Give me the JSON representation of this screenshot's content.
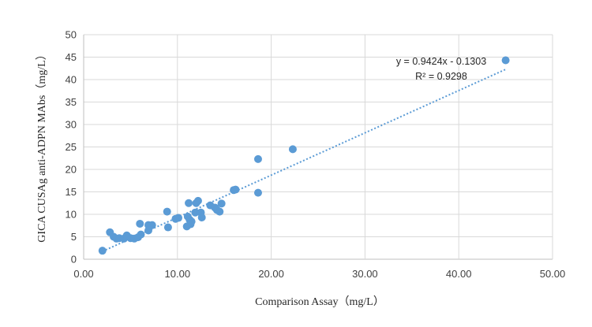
{
  "chart_data": {
    "type": "scatter",
    "xlabel": "Comparison Assay（mg/L）",
    "ylabel": "GICA CUSAg anti-ADPN MAbs（mg/L）",
    "xlim": [
      0,
      50
    ],
    "ylim": [
      0,
      50
    ],
    "x_ticks": [
      "0.00",
      "10.00",
      "20.00",
      "30.00",
      "40.00",
      "50.00"
    ],
    "y_ticks": [
      "0",
      "5",
      "10",
      "15",
      "20",
      "25",
      "30",
      "35",
      "40",
      "45",
      "50"
    ],
    "grid": true,
    "marker_color": "#5b9bd5",
    "trendline": {
      "slope": 0.9424,
      "intercept": -0.1303,
      "x_range": [
        2.0,
        45.0
      ],
      "style": "dotted",
      "color": "#5b9bd5",
      "equation": "y = 0.9424x - 0.1303",
      "r_squared": "R² = 0.9298"
    },
    "points": [
      [
        2.0,
        1.9
      ],
      [
        2.8,
        6.0
      ],
      [
        3.2,
        5.0
      ],
      [
        3.5,
        4.6
      ],
      [
        3.8,
        4.7
      ],
      [
        4.3,
        4.6
      ],
      [
        4.6,
        5.3
      ],
      [
        5.0,
        4.7
      ],
      [
        5.4,
        4.6
      ],
      [
        5.8,
        4.9
      ],
      [
        6.0,
        7.9
      ],
      [
        6.1,
        5.5
      ],
      [
        6.9,
        7.6
      ],
      [
        6.9,
        6.4
      ],
      [
        7.3,
        7.6
      ],
      [
        8.9,
        10.6
      ],
      [
        9.0,
        7.1
      ],
      [
        9.8,
        9.0
      ],
      [
        10.1,
        9.2
      ],
      [
        11.0,
        7.3
      ],
      [
        11.1,
        9.5
      ],
      [
        11.2,
        12.5
      ],
      [
        11.3,
        8.8
      ],
      [
        11.4,
        7.8
      ],
      [
        11.5,
        8.4
      ],
      [
        11.9,
        10.4
      ],
      [
        12.0,
        12.5
      ],
      [
        12.2,
        13.0
      ],
      [
        12.5,
        10.4
      ],
      [
        12.6,
        9.3
      ],
      [
        13.5,
        12.0
      ],
      [
        14.0,
        11.5
      ],
      [
        14.2,
        11.0
      ],
      [
        14.5,
        10.6
      ],
      [
        14.7,
        12.4
      ],
      [
        16.0,
        15.4
      ],
      [
        16.2,
        15.5
      ],
      [
        18.6,
        22.3
      ],
      [
        18.6,
        14.8
      ],
      [
        22.3,
        24.5
      ],
      [
        45.0,
        44.3
      ]
    ]
  }
}
